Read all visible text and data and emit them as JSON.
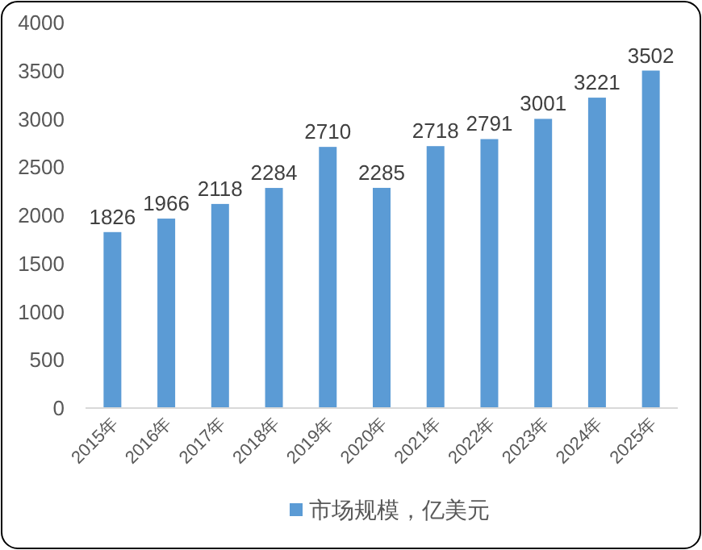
{
  "chart_data": {
    "type": "bar",
    "categories": [
      "2015年",
      "2016年",
      "2017年",
      "2018年",
      "2019年",
      "2020年",
      "2021年",
      "2022年",
      "2023年",
      "2024年",
      "2025年"
    ],
    "series": [
      {
        "name": "市场规模，亿美元",
        "color": "#5b9bd5",
        "values": [
          1826,
          1966,
          2118,
          2284,
          2710,
          2285,
          2718,
          2791,
          3001,
          3221,
          3502
        ]
      }
    ],
    "ylim": [
      0,
      4000
    ],
    "yticks": [
      0,
      500,
      1000,
      1500,
      2000,
      2500,
      3000,
      3500,
      4000
    ],
    "data_labels": true,
    "legend": "bottom"
  }
}
